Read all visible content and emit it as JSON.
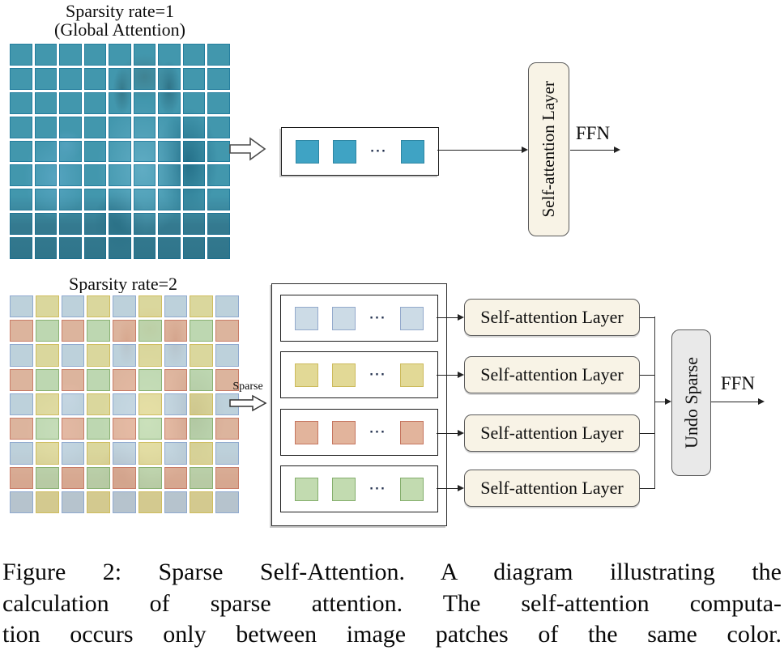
{
  "top_section": {
    "title_line1": "Sparsity rate=1",
    "title_line2": "(Global Attention)",
    "ellipsis": "···",
    "sa_label": "Self-attention Layer",
    "ffn_label": "FFN",
    "grid": {
      "rows": 9,
      "cols": 9,
      "patch_fill": "rgba(24,140,180,0.66)",
      "patch_border": "rgba(12,105,145,0.55)"
    },
    "token_fill": "#3fa3c4",
    "token_border": "#2e86a3"
  },
  "bottom_section": {
    "title": "Sparsity rate=2",
    "sparse_label": "Sparse",
    "ellipsis": "···",
    "undo_label": "Undo Sparse",
    "ffn_label": "FFN",
    "grid": {
      "rows": 9,
      "cols": 9,
      "pattern": [
        [
          "blue",
          "yellow"
        ],
        [
          "red",
          "green"
        ]
      ]
    },
    "groups": [
      {
        "id": "blue",
        "sa_label": "Self-attention Layer",
        "patch_fill": "rgba(186,208,224,0.72)",
        "patch_border": "#8fa9cf",
        "token_fill": "#ccdbe6",
        "token_border": "#93a9cc"
      },
      {
        "id": "yellow",
        "sa_label": "Self-attention Layer",
        "patch_fill": "rgba(226,216,138,0.72)",
        "patch_border": "#cfbd5e",
        "token_fill": "#e2d996",
        "token_border": "#ccba5c"
      },
      {
        "id": "red",
        "sa_label": "Self-attention Layer",
        "patch_fill": "rgba(228,168,138,0.72)",
        "patch_border": "#c97d68",
        "token_fill": "#e2b49c",
        "token_border": "#c5755f"
      },
      {
        "id": "green",
        "sa_label": "Self-attention Layer",
        "patch_fill": "rgba(186,216,166,0.72)",
        "patch_border": "#8ab272",
        "token_fill": "#c2dbb0",
        "token_border": "#84ae6c"
      }
    ]
  },
  "caption": {
    "lines": [
      "Figure 2: Sparse Self-Attention. A diagram illustrating the",
      "calculation of sparse attention. The self-attention computa-",
      "tion occurs only between image patches of the same color."
    ]
  },
  "colors": {
    "sa_pill_bg": "#f8f3e6",
    "undo_pill_bg": "#e9e9e9",
    "line": "#222222",
    "top_tint": "#2e96b8"
  }
}
